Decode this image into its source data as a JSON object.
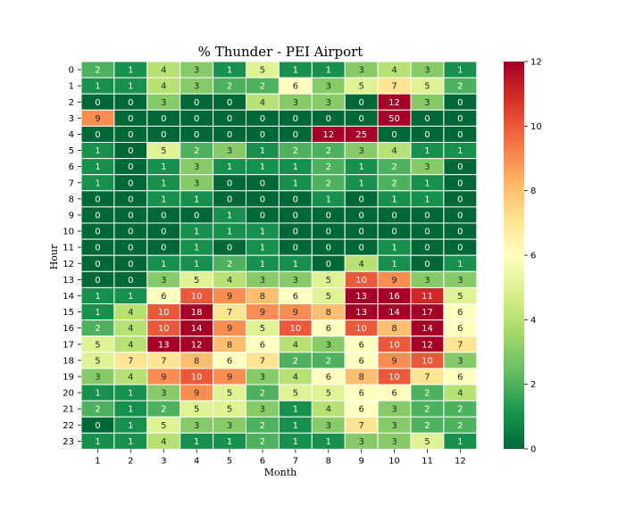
{
  "chart_data": {
    "type": "heatmap",
    "title": "% Thunder - PEI Airport",
    "xlabel": "Month",
    "ylabel": "Hour",
    "x": [
      "1",
      "2",
      "3",
      "4",
      "5",
      "6",
      "7",
      "8",
      "9",
      "10",
      "11",
      "12"
    ],
    "y": [
      "0",
      "1",
      "2",
      "3",
      "4",
      "5",
      "6",
      "7",
      "8",
      "9",
      "10",
      "11",
      "12",
      "13",
      "14",
      "15",
      "16",
      "17",
      "18",
      "19",
      "20",
      "21",
      "22",
      "23"
    ],
    "values": [
      [
        2,
        1,
        4,
        3,
        1,
        5,
        1,
        1,
        3,
        4,
        3,
        1
      ],
      [
        1,
        1,
        4,
        3,
        2,
        2,
        6,
        3,
        5,
        7,
        5,
        2
      ],
      [
        0,
        0,
        3,
        0,
        0,
        4,
        3,
        3,
        0,
        12,
        3,
        0
      ],
      [
        9,
        0,
        0,
        0,
        0,
        0,
        0,
        0,
        0,
        50,
        0,
        0
      ],
      [
        0,
        0,
        0,
        0,
        0,
        0,
        0,
        12,
        25,
        0,
        0,
        0
      ],
      [
        1,
        0,
        5,
        2,
        3,
        1,
        2,
        2,
        3,
        4,
        1,
        1
      ],
      [
        1,
        0,
        1,
        3,
        1,
        1,
        1,
        2,
        1,
        2,
        3,
        0
      ],
      [
        1,
        0,
        1,
        3,
        0,
        0,
        1,
        2,
        1,
        2,
        1,
        0
      ],
      [
        0,
        0,
        1,
        1,
        0,
        0,
        0,
        1,
        0,
        1,
        1,
        0
      ],
      [
        0,
        0,
        0,
        0,
        1,
        0,
        0,
        0,
        0,
        0,
        0,
        0
      ],
      [
        0,
        0,
        0,
        1,
        1,
        1,
        0,
        0,
        0,
        0,
        0,
        0
      ],
      [
        0,
        0,
        0,
        1,
        0,
        1,
        0,
        0,
        0,
        1,
        0,
        0
      ],
      [
        0,
        0,
        1,
        1,
        2,
        1,
        1,
        0,
        4,
        1,
        0,
        1
      ],
      [
        0,
        0,
        3,
        5,
        4,
        3,
        3,
        5,
        10,
        9,
        3,
        3
      ],
      [
        1,
        1,
        6,
        10,
        9,
        8,
        6,
        5,
        13,
        16,
        11,
        5
      ],
      [
        1,
        4,
        10,
        18,
        7,
        9,
        9,
        8,
        13,
        14,
        17,
        6
      ],
      [
        2,
        4,
        10,
        14,
        9,
        5,
        10,
        6,
        10,
        8,
        14,
        6
      ],
      [
        5,
        4,
        13,
        12,
        8,
        6,
        4,
        3,
        6,
        10,
        12,
        7
      ],
      [
        5,
        7,
        7,
        8,
        6,
        7,
        2,
        2,
        6,
        9,
        10,
        3
      ],
      [
        3,
        4,
        9,
        10,
        9,
        3,
        4,
        6,
        8,
        10,
        7,
        6
      ],
      [
        1,
        1,
        3,
        9,
        5,
        2,
        5,
        5,
        6,
        6,
        2,
        4
      ],
      [
        2,
        1,
        2,
        5,
        5,
        3,
        1,
        4,
        6,
        3,
        2,
        2
      ],
      [
        0,
        1,
        5,
        3,
        3,
        2,
        1,
        3,
        7,
        3,
        2,
        2
      ],
      [
        1,
        1,
        4,
        1,
        1,
        2,
        1,
        1,
        3,
        3,
        5,
        1
      ]
    ],
    "colorbar": {
      "min": 0,
      "max": 12,
      "ticks": [
        "0",
        "2",
        "4",
        "6",
        "8",
        "10",
        "12"
      ]
    },
    "colormap": "RdYlGn_r",
    "grid": false,
    "legend": "colorbar-right"
  }
}
